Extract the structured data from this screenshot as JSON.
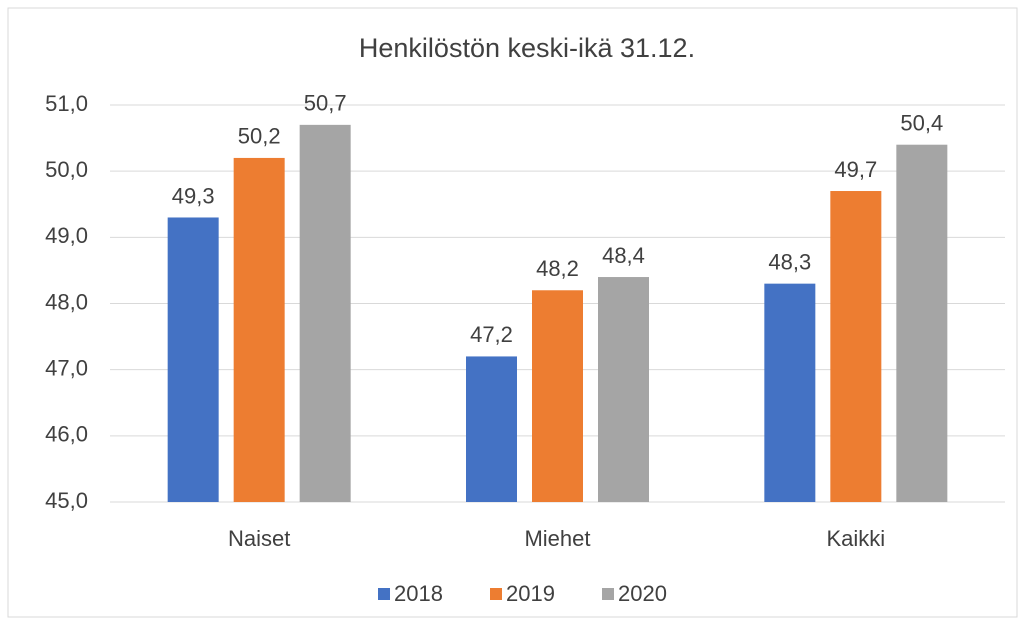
{
  "chart_data": {
    "type": "bar",
    "title": "Henkilöstön keski-ikä 31.12.",
    "categories": [
      "Naiset",
      "Miehet",
      "Kaikki"
    ],
    "series": [
      {
        "name": "2018",
        "color": "#4472c4",
        "values": [
          49.3,
          47.2,
          48.3
        ],
        "value_labels": [
          "49,3",
          "47,2",
          "48,3"
        ]
      },
      {
        "name": "2019",
        "color": "#ed7d31",
        "values": [
          50.2,
          48.2,
          49.7
        ],
        "value_labels": [
          "50,2",
          "48,2",
          "49,7"
        ]
      },
      {
        "name": "2020",
        "color": "#a5a5a5",
        "values": [
          50.7,
          48.4,
          50.4
        ],
        "value_labels": [
          "50,7",
          "48,4",
          "50,4"
        ]
      }
    ],
    "ylim": [
      45,
      51
    ],
    "yticks": [
      {
        "value": 45,
        "label": "45,0"
      },
      {
        "value": 46,
        "label": "46,0"
      },
      {
        "value": 47,
        "label": "47,0"
      },
      {
        "value": 48,
        "label": "48,0"
      },
      {
        "value": 49,
        "label": "49,0"
      },
      {
        "value": 50,
        "label": "50,0"
      },
      {
        "value": 51,
        "label": "51,0"
      }
    ],
    "grid": true,
    "legend": "bottom"
  }
}
